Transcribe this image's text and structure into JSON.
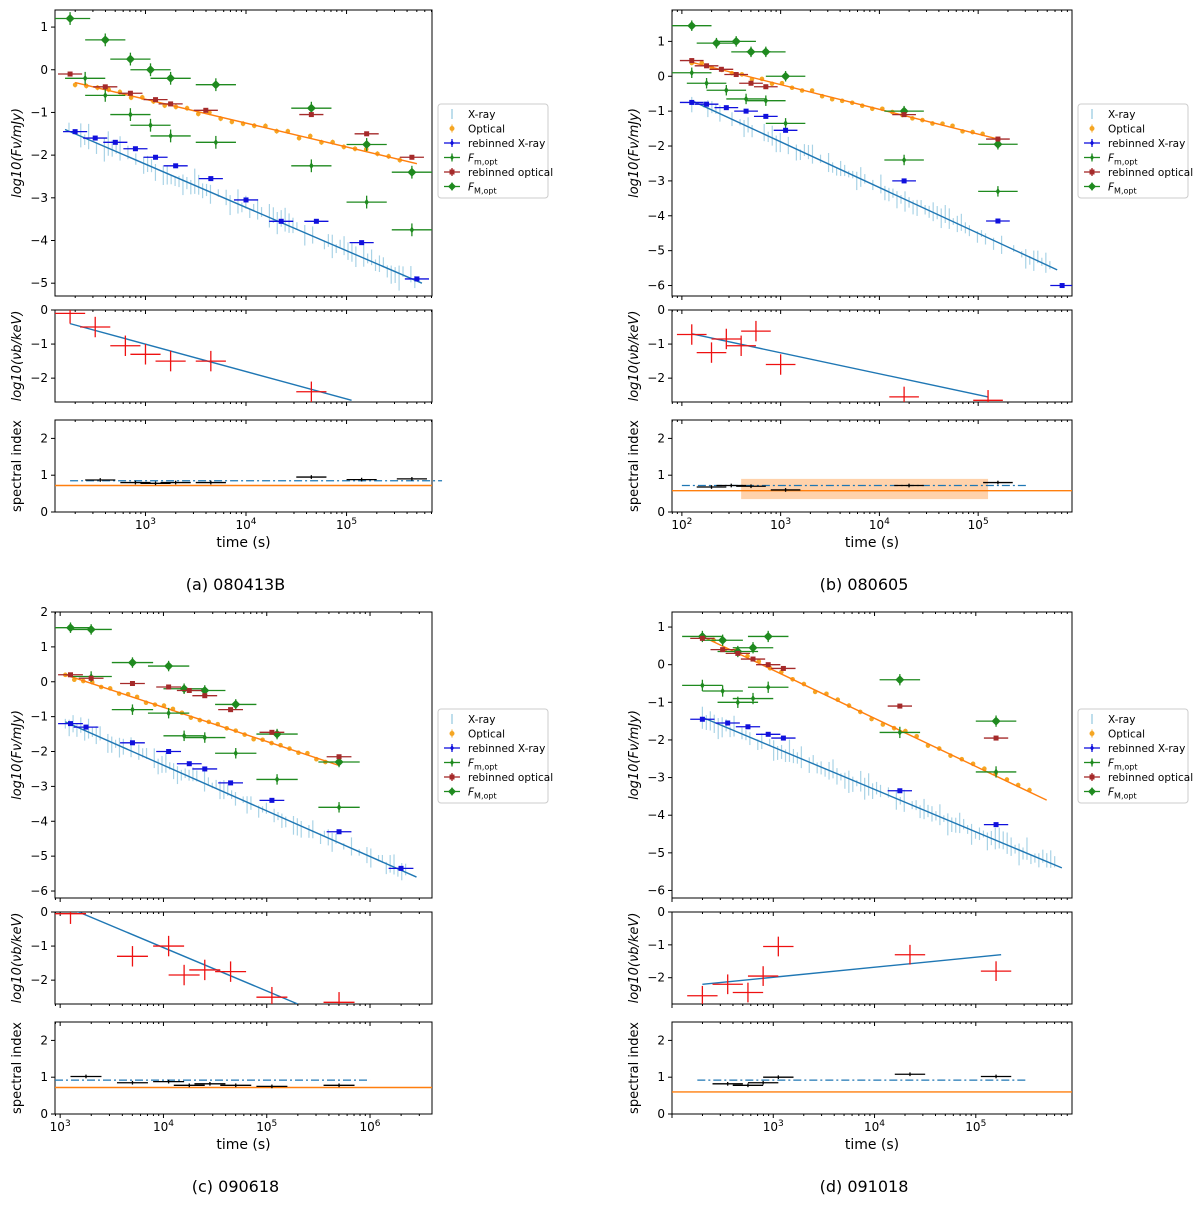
{
  "figure": {
    "legend": {
      "xray": "X-ray",
      "optical": "Optical",
      "rebinned_xray": "rebinned X-ray",
      "f_m_opt": "F_{m,opt}",
      "rebinned_optical": "rebinned optical",
      "F_M_opt": "F_{M,opt}"
    },
    "axis_labels": {
      "flux": "log10(Fν/mJy)",
      "break": "log10(νb/keV)",
      "index": "spectral index",
      "time": "time (s)"
    },
    "colors": {
      "xray_raw": "#a9d3e6",
      "optical_raw": "#f5a623",
      "rebinned_xray": "#1010dd",
      "f_m_opt": "#1f8a1f",
      "F_M_opt": "#1f8a1f",
      "rebinned_optical": "#a52a2a",
      "xray_model": "#1f77b4",
      "optical_model": "#ff7f0e",
      "break_points": "#ee1111",
      "index_points": "#000000"
    }
  },
  "chart_data": [
    {
      "caption": "(a) 080413B",
      "type": "scatter",
      "xlim_log10": [
        2.1,
        5.85
      ],
      "xticks": [
        "10^3",
        "10^4",
        "10^5"
      ],
      "flux": {
        "ylim": [
          -5.3,
          1.4
        ],
        "yticks": [
          1,
          0,
          -1,
          -2,
          -3,
          -4,
          -5
        ],
        "xray_model": [
          [
            2.2,
            -1.4
          ],
          [
            5.75,
            -5.0
          ]
        ],
        "optical_model": [
          [
            2.3,
            -0.3
          ],
          [
            5.7,
            -2.2
          ]
        ],
        "rebinned_xray": [
          [
            2.3,
            -1.45
          ],
          [
            2.5,
            -1.6
          ],
          [
            2.7,
            -1.7
          ],
          [
            2.9,
            -1.85
          ],
          [
            3.1,
            -2.05
          ],
          [
            3.3,
            -2.25
          ],
          [
            3.65,
            -2.55
          ],
          [
            4.0,
            -3.05
          ],
          [
            4.35,
            -3.55
          ],
          [
            4.7,
            -3.55
          ],
          [
            5.15,
            -4.05
          ],
          [
            5.7,
            -4.9
          ]
        ],
        "rebinned_optical": [
          [
            2.25,
            -0.1
          ],
          [
            2.6,
            -0.4
          ],
          [
            2.85,
            -0.55
          ],
          [
            3.1,
            -0.7
          ],
          [
            3.25,
            -0.8
          ],
          [
            3.6,
            -0.95
          ],
          [
            4.65,
            -1.05
          ],
          [
            5.2,
            -1.5
          ],
          [
            5.65,
            -2.05
          ]
        ],
        "f_m_opt": [
          [
            2.4,
            -0.2
          ],
          [
            2.6,
            -0.6
          ],
          [
            2.85,
            -1.05
          ],
          [
            3.05,
            -1.3
          ],
          [
            3.25,
            -1.55
          ],
          [
            3.7,
            -1.7
          ],
          [
            4.65,
            -2.25
          ],
          [
            5.2,
            -3.1
          ],
          [
            5.65,
            -3.75
          ]
        ],
        "F_M_opt": [
          [
            2.25,
            1.2
          ],
          [
            2.6,
            0.7
          ],
          [
            2.85,
            0.25
          ],
          [
            3.05,
            0.0
          ],
          [
            3.25,
            -0.2
          ],
          [
            3.7,
            -0.35
          ],
          [
            4.65,
            -0.9
          ],
          [
            5.2,
            -1.75
          ],
          [
            5.65,
            -2.4
          ]
        ]
      },
      "break": {
        "ylim": [
          -2.7,
          0.0
        ],
        "yticks": [
          0,
          -1,
          -2
        ],
        "model": [
          [
            2.25,
            -0.4
          ],
          [
            5.05,
            -2.65
          ]
        ],
        "points": [
          [
            2.25,
            -0.1
          ],
          [
            2.5,
            -0.5
          ],
          [
            2.8,
            -1.05
          ],
          [
            3.0,
            -1.3
          ],
          [
            3.25,
            -1.5
          ],
          [
            3.65,
            -1.5
          ],
          [
            4.65,
            -2.4
          ]
        ]
      },
      "index": {
        "ylim": [
          0,
          2.5
        ],
        "yticks": [
          0,
          1,
          2
        ],
        "xray_mean": 0.85,
        "optical_mean": 0.72,
        "points": [
          [
            2.55,
            0.87
          ],
          [
            2.9,
            0.8
          ],
          [
            3.1,
            0.78
          ],
          [
            3.3,
            0.8
          ],
          [
            3.65,
            0.8
          ],
          [
            4.65,
            0.95
          ],
          [
            5.15,
            0.88
          ],
          [
            5.65,
            0.9
          ]
        ]
      }
    },
    {
      "caption": "(b) 080605",
      "type": "scatter",
      "xlim_log10": [
        1.9,
        5.95
      ],
      "xticks": [
        "10^2",
        "10^3",
        "10^4",
        "10^5"
      ],
      "flux": {
        "ylim": [
          -6.3,
          1.9
        ],
        "yticks": [
          1,
          0,
          -1,
          -2,
          -3,
          -4,
          -5,
          -6
        ],
        "xray_model": [
          [
            2.1,
            -0.7
          ],
          [
            5.8,
            -5.55
          ]
        ],
        "optical_model": [
          [
            2.1,
            0.4
          ],
          [
            5.2,
            -1.8
          ]
        ],
        "rebinned_xray": [
          [
            2.1,
            -0.75
          ],
          [
            2.25,
            -0.8
          ],
          [
            2.45,
            -0.9
          ],
          [
            2.65,
            -1.0
          ],
          [
            2.85,
            -1.15
          ],
          [
            3.05,
            -1.55
          ],
          [
            4.25,
            -3.0
          ],
          [
            5.2,
            -4.15
          ],
          [
            5.85,
            -6.0
          ]
        ],
        "rebinned_optical": [
          [
            2.1,
            0.45
          ],
          [
            2.25,
            0.3
          ],
          [
            2.4,
            0.2
          ],
          [
            2.55,
            0.05
          ],
          [
            2.7,
            -0.2
          ],
          [
            2.85,
            -0.3
          ],
          [
            4.25,
            -1.1
          ],
          [
            5.2,
            -1.8
          ]
        ],
        "f_m_opt": [
          [
            2.1,
            0.1
          ],
          [
            2.25,
            -0.2
          ],
          [
            2.45,
            -0.4
          ],
          [
            2.65,
            -0.65
          ],
          [
            2.85,
            -0.7
          ],
          [
            3.05,
            -1.35
          ],
          [
            4.25,
            -2.4
          ],
          [
            5.2,
            -3.3
          ]
        ],
        "F_M_opt": [
          [
            2.1,
            1.45
          ],
          [
            2.35,
            0.95
          ],
          [
            2.55,
            1.0
          ],
          [
            2.7,
            0.7
          ],
          [
            2.85,
            0.7
          ],
          [
            3.05,
            0.0
          ],
          [
            4.25,
            -1.0
          ],
          [
            5.2,
            -1.95
          ]
        ]
      },
      "break": {
        "ylim": [
          -2.7,
          0.0
        ],
        "yticks": [
          0,
          -1,
          -2
        ],
        "model": [
          [
            2.1,
            -0.7
          ],
          [
            5.1,
            -2.55
          ]
        ],
        "points": [
          [
            2.1,
            -0.72
          ],
          [
            2.3,
            -1.25
          ],
          [
            2.45,
            -0.85
          ],
          [
            2.6,
            -1.05
          ],
          [
            2.75,
            -0.62
          ],
          [
            3.0,
            -1.6
          ],
          [
            4.25,
            -2.55
          ],
          [
            5.1,
            -2.65
          ]
        ]
      },
      "index": {
        "ylim": [
          0,
          2.5
        ],
        "yticks": [
          0,
          1,
          2
        ],
        "xray_mean": 0.72,
        "optical_mean": 0.58,
        "band": [
          0.35,
          0.9
        ],
        "points": [
          [
            2.3,
            0.68
          ],
          [
            2.5,
            0.72
          ],
          [
            2.7,
            0.7
          ],
          [
            3.05,
            0.6
          ],
          [
            4.3,
            0.72
          ],
          [
            5.2,
            0.8
          ]
        ]
      }
    },
    {
      "caption": "(c) 090618",
      "type": "scatter",
      "xlim_log10": [
        2.95,
        6.6
      ],
      "xticks": [
        "10^3",
        "10^4",
        "10^5",
        "10^6"
      ],
      "flux": {
        "ylim": [
          -6.2,
          2.0
        ],
        "yticks": [
          2,
          1,
          0,
          -1,
          -2,
          -3,
          -4,
          -5,
          -6
        ],
        "xray_model": [
          [
            3.05,
            -1.15
          ],
          [
            6.45,
            -5.6
          ]
        ],
        "optical_model": [
          [
            3.05,
            0.2
          ],
          [
            5.7,
            -2.4
          ]
        ],
        "rebinned_xray": [
          [
            3.1,
            -1.2
          ],
          [
            3.25,
            -1.3
          ],
          [
            3.7,
            -1.75
          ],
          [
            4.05,
            -2.0
          ],
          [
            4.25,
            -2.35
          ],
          [
            4.4,
            -2.5
          ],
          [
            4.65,
            -2.9
          ],
          [
            5.05,
            -3.4
          ],
          [
            5.7,
            -4.3
          ],
          [
            6.3,
            -5.35
          ]
        ],
        "rebinned_optical": [
          [
            3.1,
            0.2
          ],
          [
            3.3,
            0.1
          ],
          [
            3.7,
            -0.05
          ],
          [
            4.05,
            -0.15
          ],
          [
            4.25,
            -0.25
          ],
          [
            4.4,
            -0.4
          ],
          [
            4.65,
            -0.8
          ],
          [
            5.05,
            -1.45
          ],
          [
            5.7,
            -2.15
          ]
        ],
        "f_m_opt": [
          [
            3.3,
            0.15
          ],
          [
            3.7,
            -0.8
          ],
          [
            4.05,
            -0.9
          ],
          [
            4.2,
            -1.55
          ],
          [
            4.4,
            -1.6
          ],
          [
            4.7,
            -2.05
          ],
          [
            5.1,
            -2.8
          ],
          [
            5.7,
            -3.6
          ]
        ],
        "F_M_opt": [
          [
            3.1,
            1.55
          ],
          [
            3.3,
            1.5
          ],
          [
            3.7,
            0.55
          ],
          [
            4.05,
            0.45
          ],
          [
            4.2,
            -0.2
          ],
          [
            4.4,
            -0.25
          ],
          [
            4.7,
            -0.65
          ],
          [
            5.1,
            -1.5
          ],
          [
            5.7,
            -2.3
          ]
        ]
      },
      "break": {
        "ylim": [
          -2.7,
          0.0
        ],
        "yticks": [
          0,
          -1,
          -2
        ],
        "model": [
          [
            3.1,
            0.1
          ],
          [
            5.3,
            -2.7
          ]
        ],
        "points": [
          [
            3.1,
            -0.05
          ],
          [
            3.7,
            -1.3
          ],
          [
            4.05,
            -1.0
          ],
          [
            4.2,
            -1.85
          ],
          [
            4.4,
            -1.7
          ],
          [
            4.65,
            -1.75
          ],
          [
            5.05,
            -2.5
          ],
          [
            5.7,
            -2.65
          ]
        ]
      },
      "index": {
        "ylim": [
          0,
          2.5
        ],
        "yticks": [
          0,
          1,
          2
        ],
        "xray_mean": 0.92,
        "optical_mean": 0.72,
        "points": [
          [
            3.25,
            1.02
          ],
          [
            3.7,
            0.85
          ],
          [
            4.05,
            0.88
          ],
          [
            4.25,
            0.78
          ],
          [
            4.45,
            0.82
          ],
          [
            4.7,
            0.78
          ],
          [
            5.05,
            0.75
          ],
          [
            5.7,
            0.78
          ]
        ]
      }
    },
    {
      "caption": "(d) 091018",
      "type": "scatter",
      "xlim_log10": [
        2.0,
        5.95
      ],
      "xticks": [
        "10^3",
        "10^4",
        "10^5"
      ],
      "flux": {
        "ylim": [
          -6.2,
          1.4
        ],
        "yticks": [
          1,
          0,
          -1,
          -2,
          -3,
          -4,
          -5,
          -6
        ],
        "xray_model": [
          [
            2.3,
            -1.4
          ],
          [
            5.85,
            -5.4
          ]
        ],
        "optical_model": [
          [
            2.3,
            0.75
          ],
          [
            5.7,
            -3.6
          ]
        ],
        "rebinned_xray": [
          [
            2.3,
            -1.45
          ],
          [
            2.55,
            -1.55
          ],
          [
            2.75,
            -1.65
          ],
          [
            2.95,
            -1.85
          ],
          [
            3.1,
            -1.95
          ],
          [
            4.25,
            -3.35
          ],
          [
            5.2,
            -4.25
          ]
        ],
        "rebinned_optical": [
          [
            2.3,
            0.7
          ],
          [
            2.5,
            0.4
          ],
          [
            2.65,
            0.3
          ],
          [
            2.8,
            0.15
          ],
          [
            2.95,
            0.0
          ],
          [
            3.1,
            -0.1
          ],
          [
            4.25,
            -1.1
          ],
          [
            5.2,
            -1.95
          ]
        ],
        "f_m_opt": [
          [
            2.3,
            -0.55
          ],
          [
            2.5,
            -0.7
          ],
          [
            2.65,
            -1.0
          ],
          [
            2.8,
            -0.9
          ],
          [
            2.95,
            -0.6
          ],
          [
            4.25,
            -1.8
          ],
          [
            5.2,
            -2.85
          ]
        ],
        "F_M_opt": [
          [
            2.3,
            0.75
          ],
          [
            2.5,
            0.65
          ],
          [
            2.65,
            0.35
          ],
          [
            2.8,
            0.45
          ],
          [
            2.95,
            0.75
          ],
          [
            4.25,
            -0.4
          ],
          [
            5.2,
            -1.5
          ]
        ]
      },
      "break": {
        "ylim": [
          -2.8,
          0.0
        ],
        "yticks": [
          0,
          -1,
          -2
        ],
        "model": [
          [
            2.3,
            -2.2
          ],
          [
            5.25,
            -1.3
          ]
        ],
        "points": [
          [
            2.3,
            -2.55
          ],
          [
            2.55,
            -2.2
          ],
          [
            2.75,
            -2.45
          ],
          [
            2.9,
            -1.95
          ],
          [
            3.05,
            -1.05
          ],
          [
            4.35,
            -1.3
          ],
          [
            5.2,
            -1.8
          ]
        ]
      },
      "index": {
        "ylim": [
          0,
          2.5
        ],
        "yticks": [
          0,
          1,
          2
        ],
        "xray_mean": 0.92,
        "optical_mean": 0.6,
        "points": [
          [
            2.55,
            0.82
          ],
          [
            2.75,
            0.78
          ],
          [
            2.9,
            0.85
          ],
          [
            3.05,
            1.0
          ],
          [
            4.35,
            1.08
          ],
          [
            5.2,
            1.02
          ]
        ]
      }
    }
  ]
}
